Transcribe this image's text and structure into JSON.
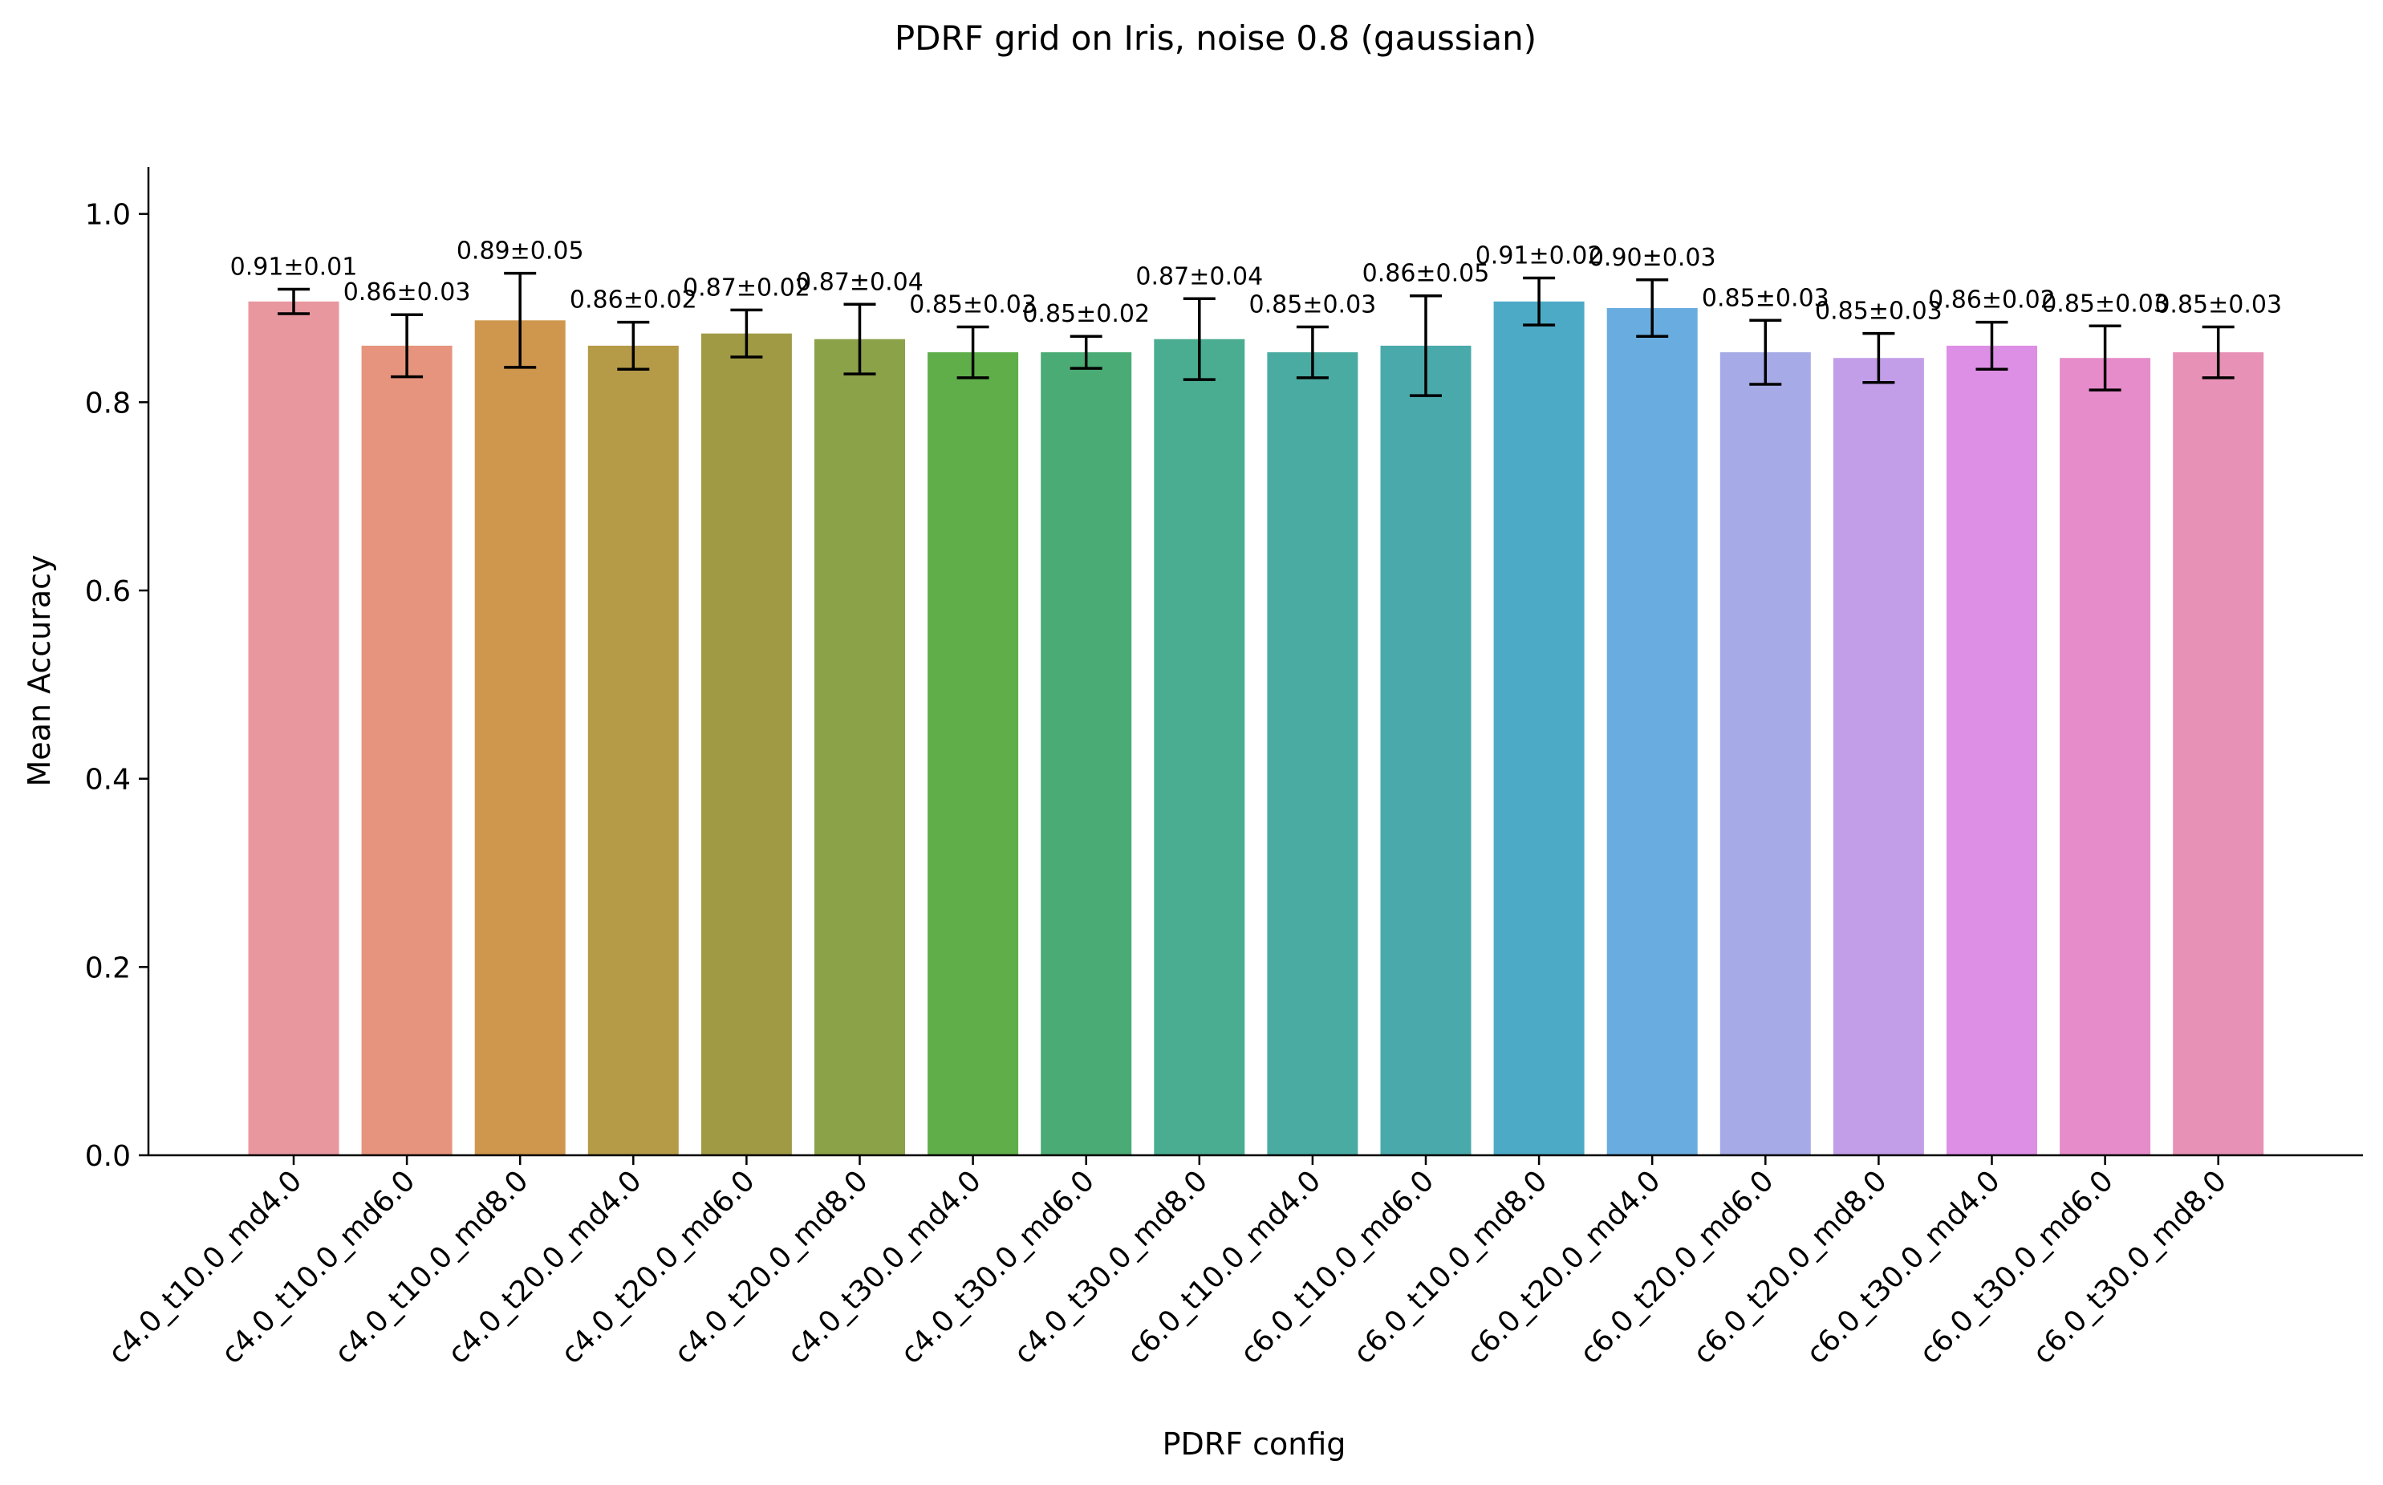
{
  "chart_data": {
    "type": "bar",
    "title": "PDRF grid on Iris, noise 0.8 (gaussian)",
    "xlabel": "PDRF config",
    "ylabel": "Mean Accuracy",
    "ylim": [
      0,
      1.05
    ],
    "yticks": [
      0.0,
      0.2,
      0.4,
      0.6,
      0.8,
      1.0
    ],
    "ytick_labels": [
      "0.0",
      "0.2",
      "0.4",
      "0.6",
      "0.8",
      "1.0"
    ],
    "grid": false,
    "categories": [
      "c4.0_t10.0_md4.0",
      "c4.0_t10.0_md6.0",
      "c4.0_t10.0_md8.0",
      "c4.0_t20.0_md4.0",
      "c4.0_t20.0_md6.0",
      "c4.0_t20.0_md8.0",
      "c4.0_t30.0_md4.0",
      "c4.0_t30.0_md6.0",
      "c4.0_t30.0_md8.0",
      "c6.0_t10.0_md4.0",
      "c6.0_t10.0_md6.0",
      "c6.0_t10.0_md8.0",
      "c6.0_t20.0_md4.0",
      "c6.0_t20.0_md6.0",
      "c6.0_t20.0_md8.0",
      "c6.0_t30.0_md4.0",
      "c6.0_t30.0_md6.0",
      "c6.0_t30.0_md8.0"
    ],
    "values": [
      0.907,
      0.86,
      0.887,
      0.86,
      0.873,
      0.867,
      0.853,
      0.853,
      0.867,
      0.853,
      0.86,
      0.907,
      0.9,
      0.853,
      0.847,
      0.86,
      0.847,
      0.853
    ],
    "errors": [
      0.013,
      0.033,
      0.05,
      0.025,
      0.025,
      0.037,
      0.027,
      0.017,
      0.043,
      0.027,
      0.053,
      0.025,
      0.03,
      0.034,
      0.026,
      0.025,
      0.034,
      0.027
    ],
    "data_labels": [
      "0.91±0.01",
      "0.86±0.03",
      "0.89±0.05",
      "0.86±0.02",
      "0.87±0.02",
      "0.87±0.04",
      "0.85±0.03",
      "0.85±0.02",
      "0.87±0.04",
      "0.85±0.03",
      "0.86±0.05",
      "0.91±0.02",
      "0.90±0.03",
      "0.85±0.03",
      "0.85±0.03",
      "0.86±0.02",
      "0.85±0.03",
      "0.85±0.03"
    ],
    "colors": [
      "#e8979f",
      "#e6947d",
      "#cf974d",
      "#b59a48",
      "#a09a45",
      "#8ca248",
      "#5fae4a",
      "#4aab75",
      "#4aad91",
      "#4aaba2",
      "#4aa9ab",
      "#4daac7",
      "#69acdf",
      "#a6aae6",
      "#c39ee8",
      "#dd8fe6",
      "#e68cca",
      "#e891b6"
    ]
  }
}
